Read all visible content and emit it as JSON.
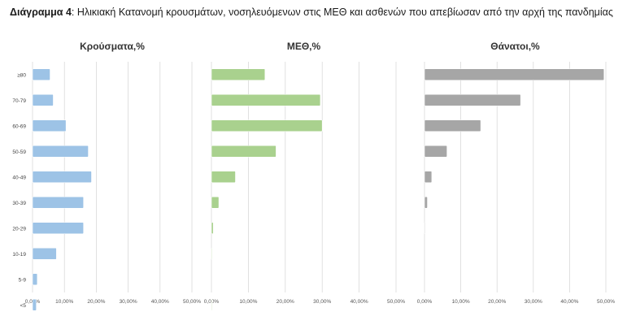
{
  "title": {
    "prefix": "Διάγραμμα 4",
    "text": ": Ηλικιακή Κατανομή κρουσμάτων, νοσηλευόμενων στις ΜΕΘ και ασθενών που απεβίωσαν από την αρχή της πανδημίας"
  },
  "chart_data": [
    {
      "type": "bar",
      "orientation": "horizontal",
      "title": "Κρούσματα,%",
      "categories": [
        "≥80",
        "70-79",
        "60-69",
        "50-59",
        "40-49",
        "30-39",
        "20-29",
        "10-19",
        "5-9",
        "<5"
      ],
      "values": [
        5.5,
        6.5,
        10.5,
        17.5,
        18.5,
        16,
        16,
        7.5,
        1.5,
        1.2
      ],
      "xlim": [
        0,
        50
      ],
      "ticks": [
        "0,00%",
        "10,00%",
        "20,00%",
        "30,00%",
        "40,00%",
        "50,00%"
      ],
      "color": "#9dc3e6"
    },
    {
      "type": "bar",
      "orientation": "horizontal",
      "title": "ΜΕΘ,%",
      "categories": [
        "≥80",
        "70-79",
        "60-69",
        "50-59",
        "40-49",
        "30-39",
        "20-29",
        "10-19",
        "5-9",
        "<5"
      ],
      "values": [
        14.5,
        29.5,
        30,
        17.5,
        6.5,
        2,
        0.5,
        0.1,
        0,
        0.1
      ],
      "xlim": [
        0,
        50
      ],
      "ticks": [
        "0,00%",
        "10,00%",
        "20,00%",
        "30,00%",
        "40,00%",
        "50,00%"
      ],
      "color": "#a9d18e"
    },
    {
      "type": "bar",
      "orientation": "horizontal",
      "title": "Θάνατοι,%",
      "categories": [
        "≥80",
        "70-79",
        "60-69",
        "50-59",
        "40-49",
        "30-39",
        "20-29",
        "10-19",
        "5-9",
        "<5"
      ],
      "values": [
        49.5,
        26.5,
        15.5,
        6.2,
        2,
        0.8,
        0.1,
        0,
        0,
        0
      ],
      "xlim": [
        0,
        50
      ],
      "ticks": [
        "0,00%",
        "10,00%",
        "20,00%",
        "30,00%",
        "40,00%",
        "50,00%"
      ],
      "color": "#a6a6a6"
    }
  ]
}
